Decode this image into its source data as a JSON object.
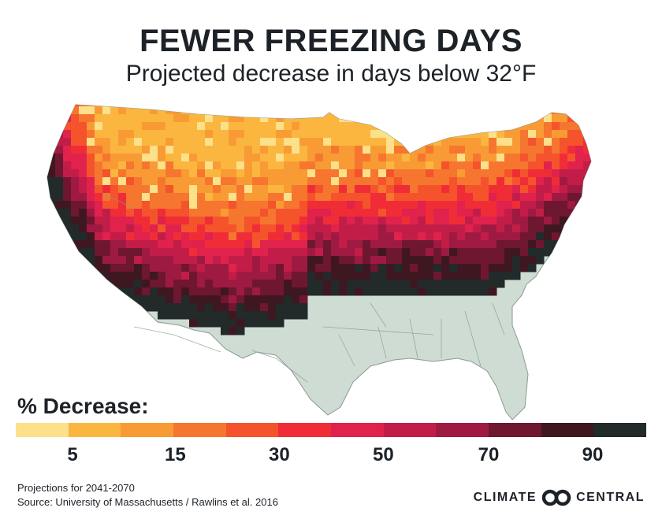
{
  "title": "FEWER FREEZING DAYS",
  "subtitle": "Projected decrease in days below 32°F",
  "legend": {
    "title": "% Decrease:",
    "colors": [
      "#fde08a",
      "#fbb640",
      "#f99b34",
      "#f6762f",
      "#f4532c",
      "#f02d37",
      "#e0224c",
      "#c21d48",
      "#9f1a42",
      "#6f1631",
      "#3f1721",
      "#222a2a"
    ],
    "ticks": [
      {
        "label": "5",
        "position": 0.09
      },
      {
        "label": "15",
        "position": 0.253
      },
      {
        "label": "30",
        "position": 0.418
      },
      {
        "label": "50",
        "position": 0.583
      },
      {
        "label": "70",
        "position": 0.75
      },
      {
        "label": "90",
        "position": 0.915
      }
    ]
  },
  "footnotes": {
    "period": "Projections for 2041-2070",
    "source": "Source: University of Massachusetts / Rawlins et al. 2016"
  },
  "brand": {
    "left": "CLIMATE",
    "right": "CENTRAL"
  },
  "map": {
    "base_color": "#cfdcd3",
    "border_color": "#8a9a90"
  }
}
